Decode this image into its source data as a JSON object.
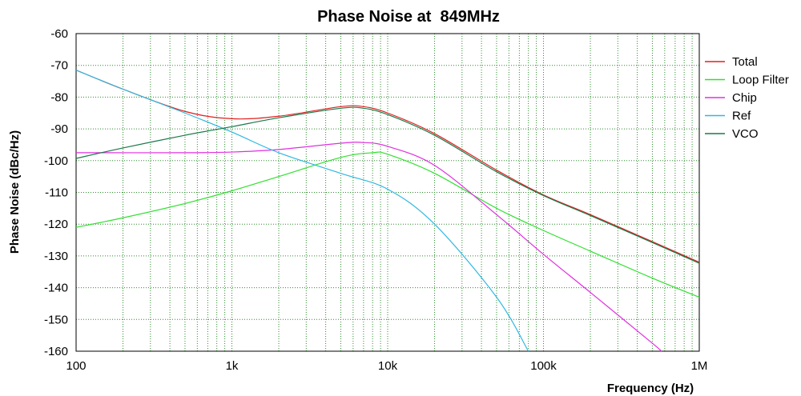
{
  "chart_data": {
    "type": "line",
    "title": "Phase Noise at  849MHz",
    "xlabel": "Frequency (Hz)",
    "ylabel": "Phase Noise (dBc/Hz)",
    "xscale": "log",
    "xlim": [
      100,
      1000000
    ],
    "ylim": [
      -160,
      -60
    ],
    "x_ticks": [
      100,
      1000,
      10000,
      100000,
      1000000
    ],
    "x_tick_labels": [
      "100",
      "1k",
      "10k",
      "100k",
      "1M"
    ],
    "y_ticks": [
      -60,
      -70,
      -80,
      -90,
      -100,
      -110,
      -120,
      -130,
      -140,
      -150,
      -160
    ],
    "y_tick_labels": [
      "-60",
      "-70",
      "-80",
      "-90",
      "-100",
      "-110",
      "-120",
      "-130",
      "-140",
      "-150",
      "-160"
    ],
    "grid": true,
    "legend_position": "right",
    "series": [
      {
        "name": "Total",
        "color": "#e02020",
        "x": [
          100,
          200,
          500,
          1000,
          2000,
          5000,
          7000,
          10000,
          20000,
          50000,
          100000,
          200000,
          500000,
          1000000
        ],
        "y": [
          -71.5,
          -77.5,
          -84.5,
          -86.8,
          -86,
          -83,
          -83,
          -85,
          -91.5,
          -103,
          -110.8,
          -117,
          -125.5,
          -132
        ]
      },
      {
        "name": "Loop Filter",
        "color": "#30e030",
        "x": [
          100,
          200,
          500,
          1000,
          2000,
          5000,
          8000,
          10000,
          20000,
          50000,
          100000,
          200000,
          500000,
          1000000
        ],
        "y": [
          -121,
          -118,
          -113.5,
          -109.5,
          -105,
          -99,
          -97.5,
          -98,
          -104,
          -115,
          -122,
          -128.5,
          -137,
          -143
        ]
      },
      {
        "name": "Chip",
        "color": "#e030e0",
        "x": [
          100,
          500,
          1000,
          2000,
          5000,
          7000,
          10000,
          20000,
          50000,
          100000,
          200000,
          500000,
          570000
        ],
        "y": [
          -97.5,
          -97.5,
          -97.3,
          -96.5,
          -94.5,
          -94.3,
          -95.5,
          -101.5,
          -117,
          -129.5,
          -141.5,
          -157.5,
          -160
        ]
      },
      {
        "name": "Ref",
        "color": "#30b8e0",
        "x": [
          100,
          200,
          500,
          1000,
          2000,
          5000,
          10000,
          20000,
          50000,
          80000
        ],
        "y": [
          -71.5,
          -77.5,
          -85,
          -91,
          -97.5,
          -104,
          -109,
          -120,
          -143,
          -160
        ]
      },
      {
        "name": "VCO",
        "color": "#1a7a4a",
        "x": [
          100,
          200,
          500,
          1000,
          2000,
          5000,
          7000,
          10000,
          20000,
          50000,
          100000,
          200000,
          500000,
          1000000
        ],
        "y": [
          -99.3,
          -96,
          -92,
          -89.3,
          -86.5,
          -83.5,
          -83.5,
          -85.5,
          -92,
          -103.5,
          -111,
          -117.3,
          -125.8,
          -132.3
        ]
      }
    ]
  }
}
